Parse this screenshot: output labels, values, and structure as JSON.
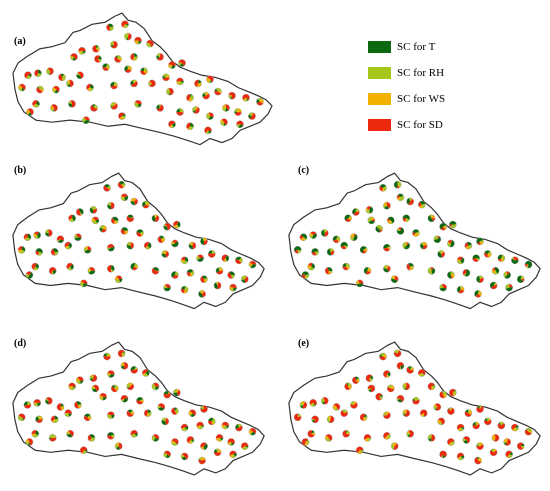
{
  "panels": [
    {
      "id": "a",
      "label": "(a)",
      "mix": [
        0.2,
        0.2,
        0.1,
        0.5
      ]
    },
    {
      "id": "b",
      "label": "(b)",
      "mix": [
        0.35,
        0.15,
        0.1,
        0.4
      ]
    },
    {
      "id": "c",
      "label": "(c)",
      "mix": [
        0.45,
        0.2,
        0.1,
        0.25
      ]
    },
    {
      "id": "d",
      "label": "(d)",
      "mix": [
        0.2,
        0.2,
        0.1,
        0.5
      ]
    },
    {
      "id": "e",
      "label": "(e)",
      "mix": [
        0.05,
        0.15,
        0.15,
        0.65
      ]
    }
  ],
  "legend": [
    {
      "label": "SC for T",
      "color": "#0b6a10"
    },
    {
      "label": "SC for RH",
      "color": "#a6c61c"
    },
    {
      "label": "SC for WS",
      "color": "#f2b100"
    },
    {
      "label": "SC for SD",
      "color": "#ee2a0e"
    }
  ],
  "region_outline_color": "#333333",
  "station_marker": "pie-chart"
}
